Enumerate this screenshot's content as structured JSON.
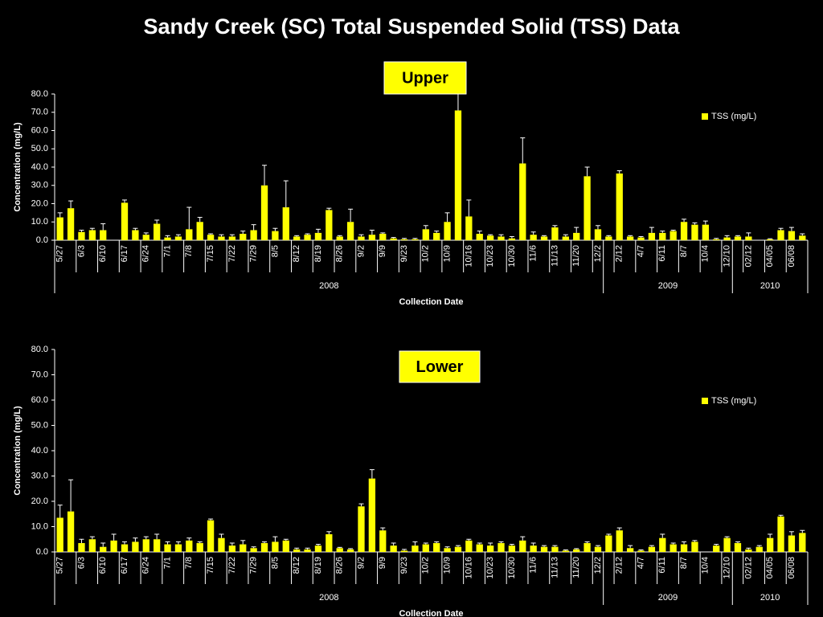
{
  "title": "Sandy Creek (SC) Total Suspended Solid (TSS) Data",
  "chart_data": [
    {
      "type": "bar",
      "panel_label": "Upper",
      "xlabel": "Collection Date",
      "ylabel": "Concentration (mg/L)",
      "categories": [
        "5/27",
        null,
        "6/3",
        null,
        "6/10",
        null,
        "6/17",
        null,
        "6/24",
        null,
        "7/1",
        null,
        "7/8",
        null,
        "7/15",
        null,
        "7/22",
        null,
        "7/29",
        null,
        "8/5",
        null,
        "8/12",
        null,
        "8/19",
        null,
        "8/26",
        null,
        "9/2",
        null,
        "9/9",
        null,
        "9/23",
        null,
        "10/2",
        null,
        "10/9",
        null,
        "10/16",
        null,
        "10/23",
        null,
        "10/30",
        null,
        "11/6",
        null,
        "11/13",
        null,
        "11/20",
        null,
        "12/2",
        null,
        "2/12",
        null,
        "4/7",
        null,
        "6/11",
        null,
        "8/7",
        null,
        "10/4",
        null,
        "12/10",
        null,
        "02/12",
        null,
        "04/05",
        null,
        "06/08",
        null
      ],
      "category_years": [
        "2008",
        "2008",
        "2008",
        "2008",
        "2008",
        "2008",
        "2008",
        "2008",
        "2008",
        "2008",
        "2008",
        "2008",
        "2008",
        "2008",
        "2008",
        "2008",
        "2008",
        "2008",
        "2008",
        "2008",
        "2008",
        "2008",
        "2008",
        "2008",
        "2008",
        "2008",
        "2008",
        "2008",
        "2008",
        "2008",
        "2008",
        "2008",
        "2008",
        "2008",
        "2008",
        "2008",
        "2008",
        "2008",
        "2008",
        "2008",
        "2008",
        "2008",
        "2008",
        "2008",
        "2008",
        "2008",
        "2008",
        "2008",
        "2008",
        "2008",
        "2008",
        "2009",
        "2009",
        "2009",
        "2009",
        "2009",
        "2009",
        "2009",
        "2009",
        "2009",
        "2009",
        "2009",
        "2009",
        "2010",
        "2010",
        "2010",
        "2010",
        "2010",
        "2010",
        "2010"
      ],
      "series": [
        {
          "name": "TSS (mg/L)",
          "color": "#ffff00",
          "values": [
            12.5,
            17.5,
            4.5,
            5.5,
            5.5,
            null,
            20.5,
            5.5,
            3,
            9,
            1.5,
            2,
            6,
            10,
            3,
            2,
            2,
            3.5,
            5.5,
            30,
            5,
            18,
            2,
            3,
            4,
            16.5,
            2,
            10,
            2,
            3,
            3.5,
            1,
            0.5,
            0.5,
            6,
            4,
            10,
            71,
            13,
            3.5,
            2.5,
            2,
            1,
            42,
            3,
            2,
            7,
            2,
            4,
            35,
            6,
            2,
            36.5,
            2,
            1.5,
            4,
            4,
            5,
            10,
            8.5,
            8.5,
            0.5,
            1.5,
            2,
            2,
            null,
            0.5,
            5.5,
            5,
            2.5
          ],
          "errors": [
            2.5,
            4,
            1,
            1,
            3.5,
            null,
            1.5,
            1,
            1,
            2,
            1,
            1,
            12,
            2.5,
            0.5,
            1,
            1,
            1.5,
            3,
            11,
            1.5,
            14.5,
            0.5,
            0.5,
            2,
            1,
            0.5,
            7,
            1,
            2.5,
            0.5,
            0.5,
            0.5,
            0.5,
            2,
            1,
            5,
            9,
            9,
            1.5,
            0.5,
            1,
            1,
            14,
            1.5,
            0.5,
            1,
            1,
            3,
            5,
            2,
            0.5,
            1.5,
            0.5,
            0.5,
            3,
            1,
            0.5,
            1.5,
            1,
            2,
            0.5,
            1,
            0.5,
            2,
            null,
            0.3,
            1,
            2,
            1
          ]
        }
      ],
      "ylim": [
        0,
        80
      ],
      "yticks": [
        {
          "value": 0,
          "label": "0.0"
        },
        {
          "value": 10,
          "label": "10.0"
        },
        {
          "value": 20,
          "label": "20.0"
        },
        {
          "value": 30,
          "label": "30.0"
        },
        {
          "value": 40,
          "label": "40.0"
        },
        {
          "value": 50,
          "label": "50.0"
        },
        {
          "value": 60,
          "label": "60.0"
        },
        {
          "value": 70,
          "label": "70.0"
        },
        {
          "value": 80,
          "label": "80.0"
        }
      ],
      "legend": "upper right"
    },
    {
      "type": "bar",
      "panel_label": "Lower",
      "xlabel": "Collection Date",
      "ylabel": "Concentration (mg/L)",
      "categories": [
        "5/27",
        null,
        "6/3",
        null,
        "6/10",
        null,
        "6/17",
        null,
        "6/24",
        null,
        "7/1",
        null,
        "7/8",
        null,
        "7/15",
        null,
        "7/22",
        null,
        "7/29",
        null,
        "8/5",
        null,
        "8/12",
        null,
        "8/19",
        null,
        "8/26",
        null,
        "9/2",
        null,
        "9/9",
        null,
        "9/23",
        null,
        "10/2",
        null,
        "10/9",
        null,
        "10/16",
        null,
        "10/23",
        null,
        "10/30",
        null,
        "11/6",
        null,
        "11/13",
        null,
        "11/20",
        null,
        "12/2",
        null,
        "2/12",
        null,
        "4/7",
        null,
        "6/11",
        null,
        "8/7",
        null,
        "10/4",
        null,
        "12/10",
        null,
        "02/12",
        null,
        "04/05",
        null,
        "06/08",
        null
      ],
      "category_years": [
        "2008",
        "2008",
        "2008",
        "2008",
        "2008",
        "2008",
        "2008",
        "2008",
        "2008",
        "2008",
        "2008",
        "2008",
        "2008",
        "2008",
        "2008",
        "2008",
        "2008",
        "2008",
        "2008",
        "2008",
        "2008",
        "2008",
        "2008",
        "2008",
        "2008",
        "2008",
        "2008",
        "2008",
        "2008",
        "2008",
        "2008",
        "2008",
        "2008",
        "2008",
        "2008",
        "2008",
        "2008",
        "2008",
        "2008",
        "2008",
        "2008",
        "2008",
        "2008",
        "2008",
        "2008",
        "2008",
        "2008",
        "2008",
        "2008",
        "2008",
        "2008",
        "2009",
        "2009",
        "2009",
        "2009",
        "2009",
        "2009",
        "2009",
        "2009",
        "2009",
        "2009",
        "2009",
        "2009",
        "2010",
        "2010",
        "2010",
        "2010",
        "2010",
        "2010",
        "2010"
      ],
      "series": [
        {
          "name": "TSS (mg/L)",
          "color": "#ffff00",
          "values": [
            13.5,
            16,
            3.5,
            5,
            2,
            4.5,
            3,
            4,
            5,
            5,
            3,
            3,
            4.5,
            3.5,
            12.5,
            5.5,
            2.5,
            3,
            1.5,
            3.5,
            4,
            4.5,
            1,
            1,
            2.5,
            7,
            1.5,
            1,
            18,
            29,
            8.5,
            2.5,
            0.5,
            2.5,
            3,
            3.5,
            1.5,
            2,
            4.5,
            3,
            2.5,
            3.5,
            2.5,
            4.5,
            2.5,
            2,
            2,
            0.5,
            1,
            3.5,
            2,
            6.5,
            8.5,
            1.5,
            0.5,
            2,
            5.5,
            3,
            3,
            4,
            null,
            2.5,
            5.5,
            3.5,
            1,
            2,
            5.5,
            14,
            6.5,
            7.5
          ],
          "errors": [
            5,
            12.5,
            1.5,
            1,
            1.5,
            2.5,
            1,
            1.5,
            1,
            2,
            1,
            1,
            1,
            0.5,
            0.5,
            1.5,
            1,
            1.5,
            0.5,
            0.5,
            2,
            0.5,
            0.5,
            0.5,
            0.5,
            1,
            0.3,
            0.3,
            1,
            3.5,
            1,
            1,
            0.5,
            1.5,
            0.5,
            0.5,
            0.5,
            0.5,
            0.5,
            0.5,
            1,
            0.5,
            0.5,
            1.5,
            1,
            0.5,
            0.5,
            0.3,
            0.3,
            0.5,
            0.5,
            0.5,
            1,
            1,
            0.3,
            0.5,
            1.5,
            0.5,
            1,
            0.5,
            null,
            0.5,
            0.5,
            0.5,
            0.5,
            0.5,
            1.5,
            0.5,
            1.5,
            1
          ]
        }
      ],
      "ylim": [
        0,
        80
      ],
      "yticks": [
        {
          "value": 0,
          "label": "0.0"
        },
        {
          "value": 10,
          "label": "10.0"
        },
        {
          "value": 20,
          "label": "20.0"
        },
        {
          "value": 30,
          "label": "30.0"
        },
        {
          "value": 40,
          "label": "40.0"
        },
        {
          "value": 50,
          "label": "50.0"
        },
        {
          "value": 60,
          "label": "60.0"
        },
        {
          "value": 70,
          "label": "70.0"
        },
        {
          "value": 80,
          "label": "80.0"
        }
      ],
      "legend": "upper right"
    }
  ]
}
